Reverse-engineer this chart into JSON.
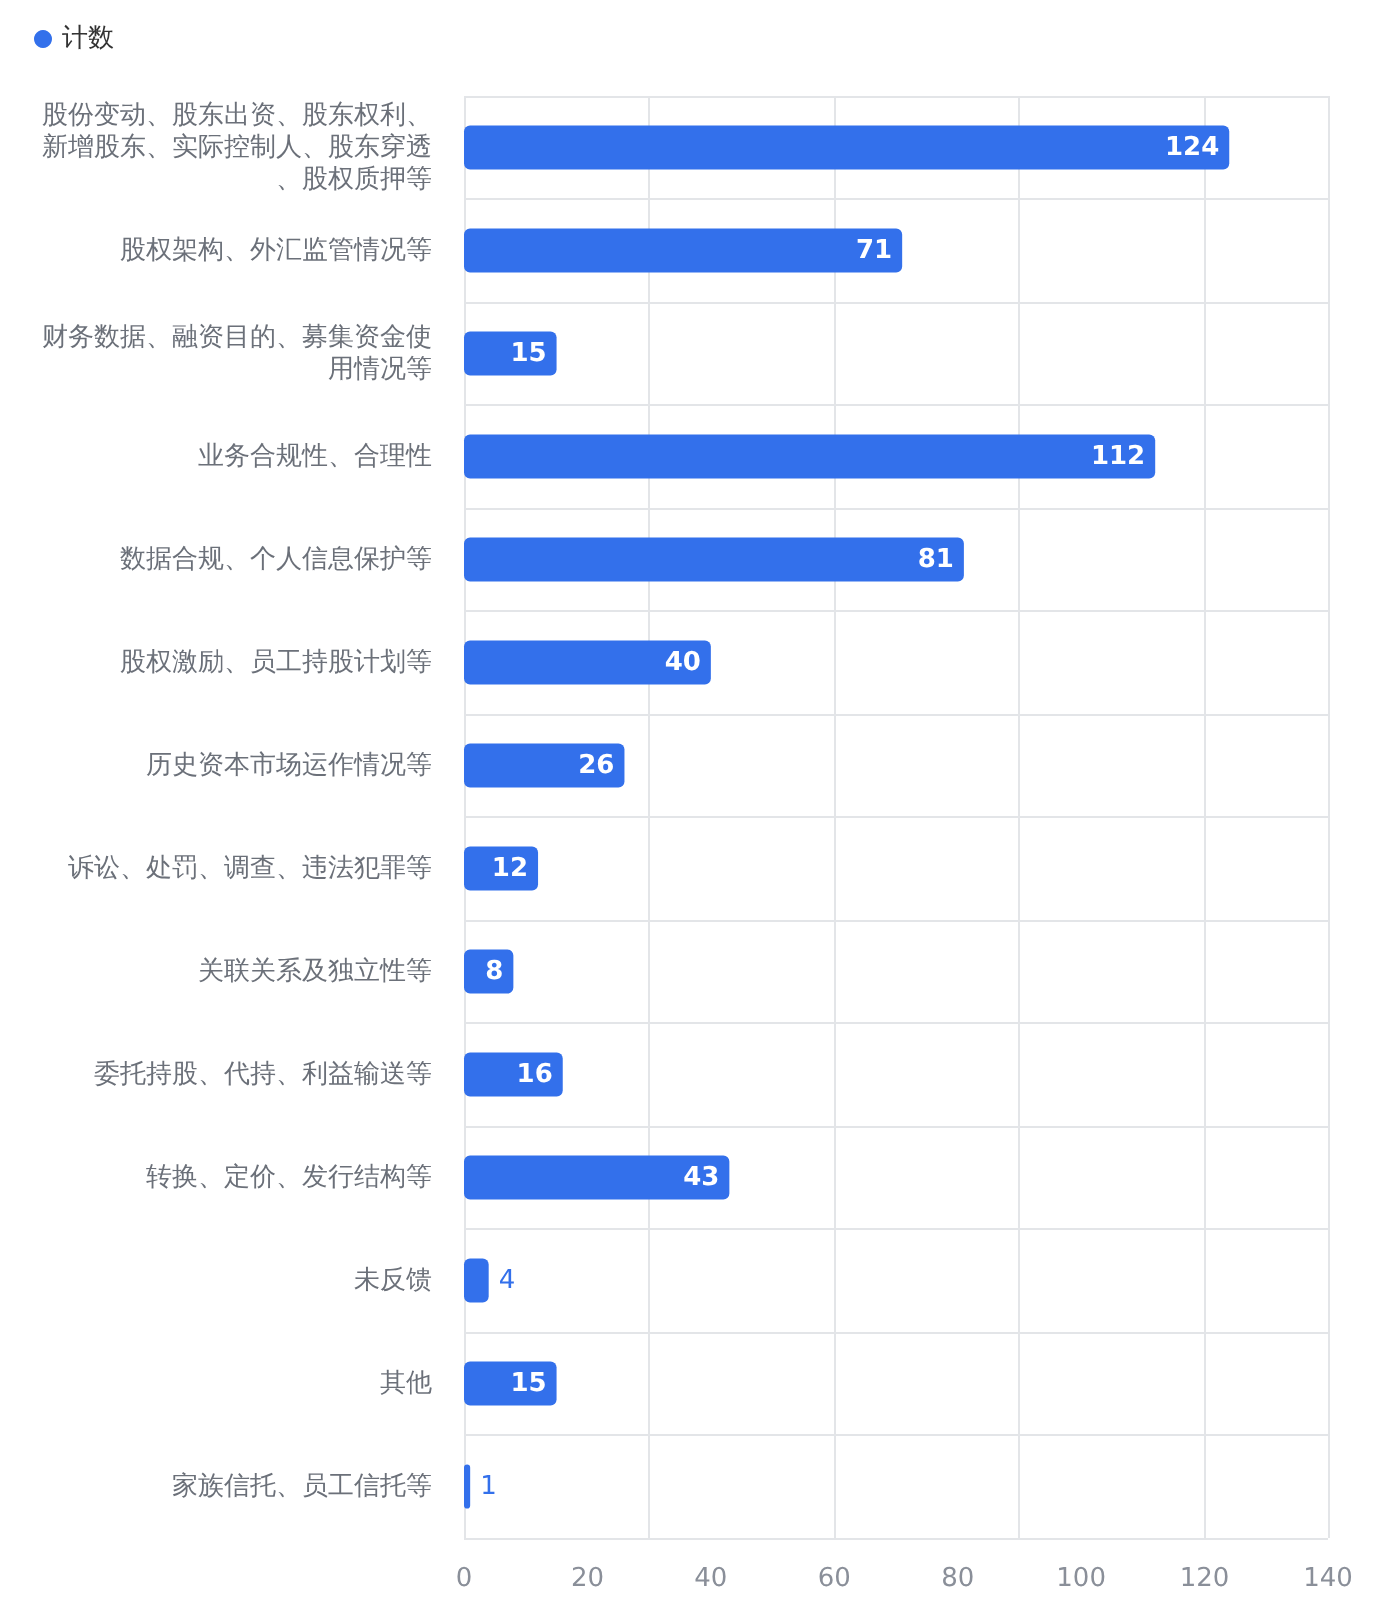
{
  "chart_data": {
    "type": "bar",
    "orientation": "horizontal",
    "categories": [
      "股份变动、股东出资、股东权利、新增股东、实际控制人、股东穿透、股权质押等",
      "股权架构、外汇监管情况等",
      "财务数据、融资目的、募集资金使用情况等",
      "业务合规性、合理性",
      "数据合规、个人信息保护等",
      "股权激励、员工持股计划等",
      "历史资本市场运作情况等",
      "诉讼、处罚、调查、违法犯罪等",
      "关联关系及独立性等",
      "委托持股、代持、利益输送等",
      "转换、定价、发行结构等",
      "未反馈",
      "其他",
      "家族信托、员工信托等"
    ],
    "series": [
      {
        "name": "计数",
        "color": "#3370eb",
        "values": [
          124,
          71,
          15,
          112,
          81,
          40,
          26,
          12,
          8,
          16,
          43,
          4,
          15,
          1
        ]
      }
    ],
    "xlim": [
      0,
      140
    ],
    "xticks": [
      0,
      20,
      40,
      60,
      80,
      100,
      120,
      140
    ],
    "grid": true,
    "legend": "top left",
    "data_labels": true
  }
}
